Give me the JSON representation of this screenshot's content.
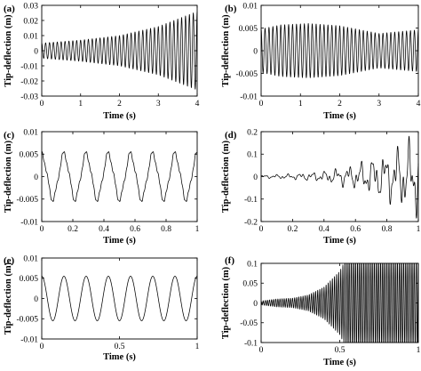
{
  "chart_data": [
    {
      "panel_label": "(a)",
      "type": "line",
      "xlabel": "Time (s)",
      "ylabel": "Tip-deflection (m)",
      "xlim": [
        0,
        4
      ],
      "ylim": [
        -0.03,
        0.03
      ],
      "xticks": [
        "0",
        "1",
        "2",
        "3",
        "4"
      ],
      "yticks": [
        "0.03",
        "0.02",
        "0.01",
        "0",
        "-0.01",
        "-0.02",
        "-0.03"
      ],
      "series": [
        {
          "description": "oscillation ~10 Hz with amplitude growing from ~0.005 to ~0.025",
          "frequency_hz": 10,
          "envelope": {
            "x": [
              0,
              1,
              2,
              3,
              4
            ],
            "amplitude": [
              0.005,
              0.007,
              0.01,
              0.016,
              0.026
            ]
          }
        }
      ]
    },
    {
      "panel_label": "(b)",
      "type": "line",
      "xlabel": "Time (s)",
      "ylabel": "Tip-deflection (m)",
      "xlim": [
        0,
        4
      ],
      "ylim": [
        -0.01,
        0.01
      ],
      "xticks": [
        "0",
        "1",
        "2",
        "3",
        "4"
      ],
      "yticks": [
        "0.01",
        "0.005",
        "0",
        "-0.005",
        "-0.01"
      ],
      "series": [
        {
          "description": "oscillation ~10 Hz with amplitude rising to ~0.006 then decaying",
          "frequency_hz": 10,
          "envelope": {
            "x": [
              0,
              0.5,
              1.2,
              2,
              3,
              4
            ],
            "amplitude": [
              0.0048,
              0.0057,
              0.006,
              0.0055,
              0.0038,
              0.0046
            ]
          }
        }
      ]
    },
    {
      "panel_label": "(c)",
      "type": "line",
      "xlabel": "Time (s)",
      "ylabel": "Tip-deflection (m)",
      "xlim": [
        0,
        1
      ],
      "ylim": [
        -0.01,
        0.01
      ],
      "xticks": [
        "0",
        "0.2",
        "0.4",
        "0.6",
        "0.8",
        "1"
      ],
      "yticks": [
        "0.01",
        "0.005",
        "0",
        "-0.005",
        "-0.01"
      ],
      "series": [
        {
          "description": "periodic oscillation ~7 Hz, amplitude ~0.005, slightly distorted",
          "frequency_hz": 7,
          "envelope": {
            "x": [
              0,
              1
            ],
            "amplitude": [
              0.005,
              0.005
            ]
          }
        }
      ]
    },
    {
      "panel_label": "(d)",
      "type": "line",
      "xlabel": "Time (s)",
      "ylabel": "Tip-deflection (m)",
      "xlim": [
        0,
        1
      ],
      "ylim": [
        -0.2,
        0.2
      ],
      "xticks": [
        "0",
        "0.2",
        "0.4",
        "0.6",
        "0.8",
        "1"
      ],
      "yticks": [
        "0.2",
        "0.1",
        "0",
        "-0.1",
        "-0.2"
      ],
      "series": [
        {
          "description": "irregular oscillation growing from near zero to ~0.15",
          "frequency_hz": 13,
          "envelope": {
            "x": [
              0,
              0.2,
              0.4,
              0.6,
              0.8,
              1
            ],
            "amplitude": [
              0.005,
              0.01,
              0.02,
              0.045,
              0.09,
              0.15
            ]
          }
        }
      ]
    },
    {
      "panel_label": "(e)",
      "type": "line",
      "xlabel": "Time (s)",
      "ylabel": "Tip-deflection (m)",
      "xlim": [
        0,
        1
      ],
      "ylim": [
        -0.01,
        0.01
      ],
      "xticks": [
        "0",
        "0.5",
        "1"
      ],
      "yticks": [
        "0.01",
        "0.005",
        "0",
        "-0.005",
        "-0.01"
      ],
      "series": [
        {
          "description": "smooth periodic oscillation ~7 Hz, amplitude ~0.0055",
          "frequency_hz": 7,
          "envelope": {
            "x": [
              0,
              1
            ],
            "amplitude": [
              0.0055,
              0.0055
            ]
          }
        }
      ]
    },
    {
      "panel_label": "(f)",
      "type": "line",
      "xlabel": "Time (s)",
      "ylabel": "Tip-deflection (m)",
      "xlim": [
        0,
        1
      ],
      "ylim": [
        -0.1,
        0.1
      ],
      "xticks": [
        "0",
        "0.5",
        "1"
      ],
      "yticks": [
        "0.1",
        "0.05",
        "0",
        "-0.05",
        "-0.1"
      ],
      "series": [
        {
          "description": "fast oscillation growing rapidly, saturating at +/-0.1 after ~0.55 s",
          "frequency_hz": 75,
          "clip": [
            -0.1,
            0.1
          ],
          "envelope": {
            "x": [
              0,
              0.1,
              0.2,
              0.3,
              0.4,
              0.5,
              0.55,
              1
            ],
            "amplitude": [
              0.005,
              0.01,
              0.012,
              0.02,
              0.04,
              0.08,
              0.12,
              0.12
            ]
          }
        }
      ]
    }
  ]
}
